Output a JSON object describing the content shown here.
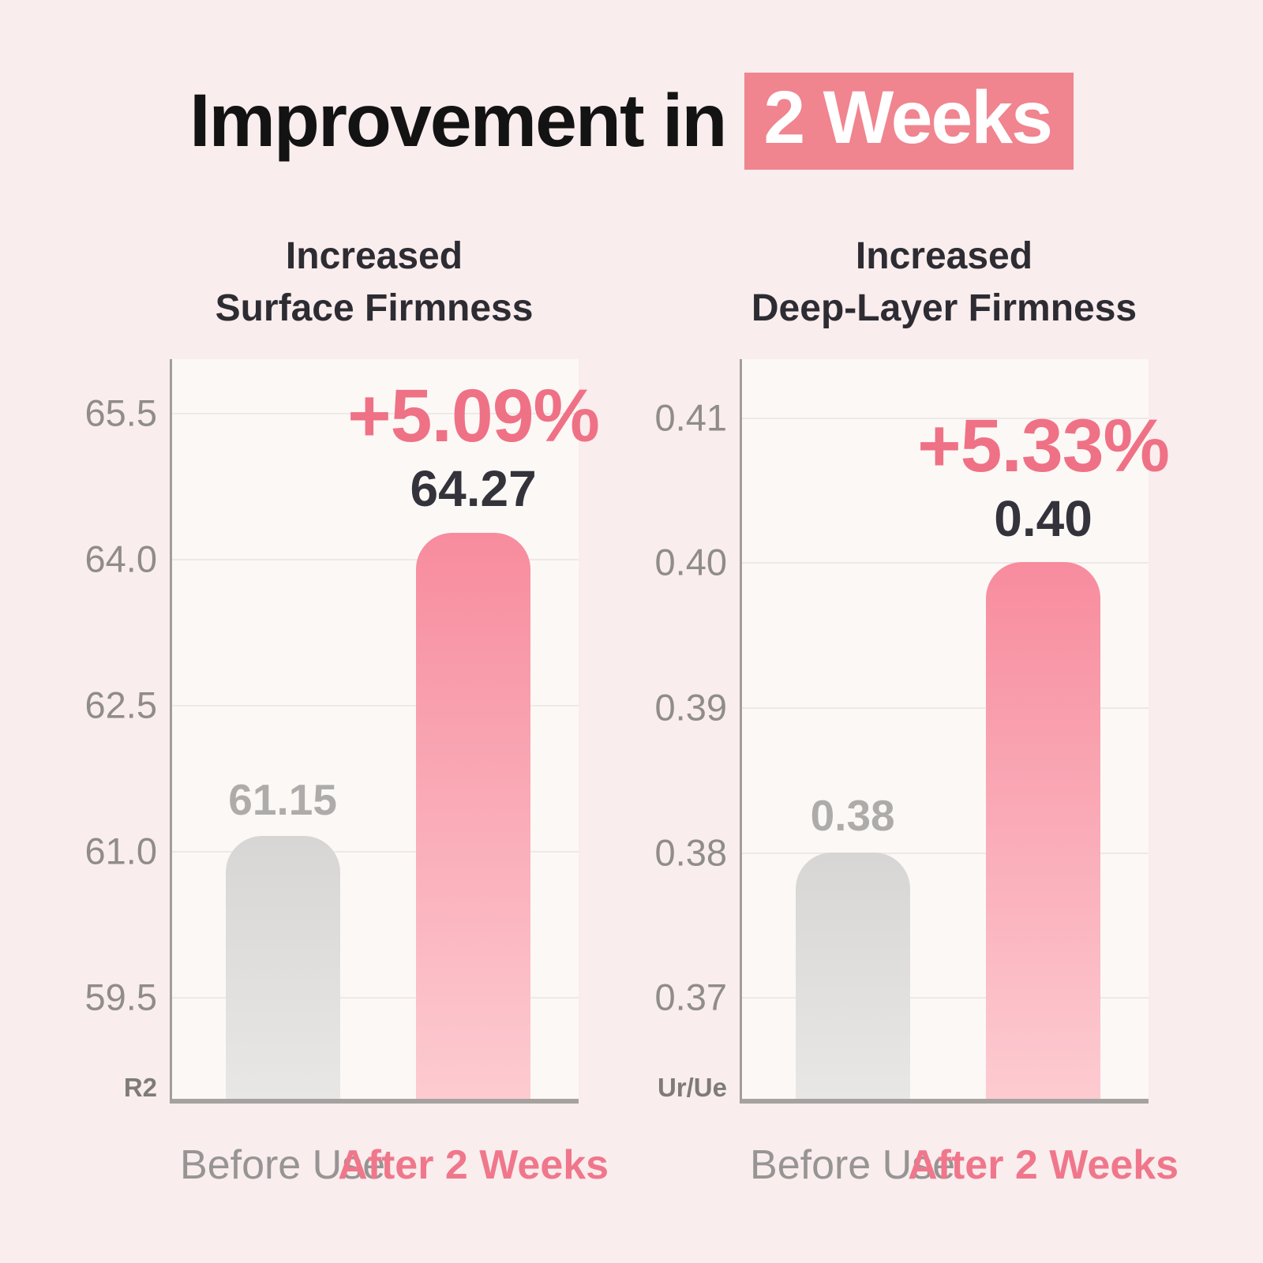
{
  "page": {
    "background": "#F9EDEE"
  },
  "header": {
    "title_prefix": "Improvement in",
    "title_highlight": "2 Weeks",
    "highlight_bg": "#F0848F",
    "highlight_text_color": "#FFFFFF"
  },
  "colors": {
    "accent_pink_text": "#EF7185",
    "category_pink": "#F0778B",
    "category_gray": "#979494",
    "dark_value_text": "#34333B",
    "gray_value_text": "#AEACAA",
    "tick_text": "#8F8C8A",
    "unit_text": "#7E7B79",
    "bar_gray_top": "#D8D6D4",
    "bar_gray_bottom": "#E9E7E5",
    "bar_pink_top": "#F78C9E",
    "bar_pink_bottom": "#FDCBD1",
    "plot_background": "#FCF8F6",
    "gridline": "#EEE9E7",
    "axis_line": "#A5A2A0"
  },
  "chart_data": [
    {
      "type": "bar",
      "title_lines": [
        "Increased",
        "Surface Firmness"
      ],
      "unit_label": "R2",
      "ylim": [
        58.45,
        66.05
      ],
      "ytick_values": [
        65.5,
        64.0,
        62.5,
        61.0,
        59.5
      ],
      "ytick_labels": [
        "65.5",
        "64.0",
        "62.5",
        "61.0",
        "59.5"
      ],
      "grid": true,
      "legend": "none",
      "categories": [
        "Before Use",
        "After 2 Weeks"
      ],
      "bars": [
        {
          "category": "Before Use",
          "value": 61.15,
          "value_label": "61.15",
          "change_label": null,
          "style": "before"
        },
        {
          "category": "After 2 Weeks",
          "value": 64.27,
          "value_label": "64.27",
          "change_label": "+5.09%",
          "style": "after"
        }
      ]
    },
    {
      "type": "bar",
      "title_lines": [
        "Increased",
        "Deep-Layer Firmness"
      ],
      "unit_label": "Ur/Ue",
      "ylim": [
        0.363,
        0.414
      ],
      "ytick_values": [
        0.41,
        0.4,
        0.39,
        0.38,
        0.37
      ],
      "ytick_labels": [
        "0.41",
        "0.40",
        "0.39",
        "0.38",
        "0.37"
      ],
      "grid": true,
      "legend": "none",
      "categories": [
        "Before Use",
        "After 2 Weeks"
      ],
      "bars": [
        {
          "category": "Before Use",
          "value": 0.38,
          "value_label": "0.38",
          "change_label": null,
          "style": "before"
        },
        {
          "category": "After 2 Weeks",
          "value": 0.4,
          "value_label": "0.40",
          "change_label": "+5.33%",
          "style": "after"
        }
      ]
    }
  ]
}
